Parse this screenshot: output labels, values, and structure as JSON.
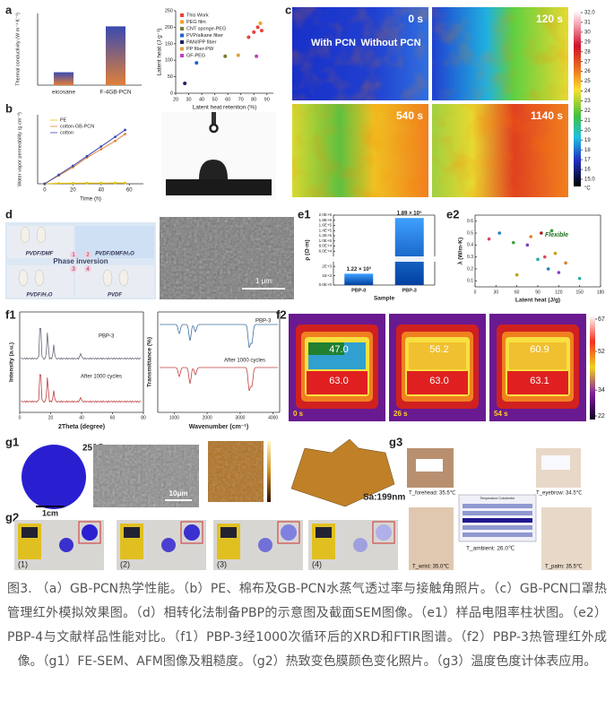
{
  "panels": {
    "a": "a",
    "b": "b",
    "c": "c",
    "d": "d",
    "e1": "e1",
    "e2": "e2",
    "f1": "f1",
    "f2": "f2",
    "g1": "g1",
    "g2": "g2",
    "g3": "g3"
  },
  "a": {
    "ylabel": "Thermal conductivity (W m⁻¹ K⁻¹)",
    "categories": [
      "eicosane",
      "F-4GB-PCN"
    ],
    "values": [
      0.18,
      0.82
    ],
    "ylim": [
      0,
      1
    ]
  },
  "scatter": {
    "xlabel": "Latent heat retention (%)",
    "ylabel": "Latent heat (J g⁻¹)",
    "xlim": [
      20,
      95
    ],
    "ylim": [
      0,
      250
    ],
    "xticks": [
      20,
      30,
      40,
      50,
      60,
      70,
      80,
      90
    ],
    "yticks": [
      0,
      50,
      100,
      150,
      200,
      250
    ],
    "series": [
      {
        "name": "This Work",
        "color": "#e8433a",
        "x": [
          76,
          80,
          83,
          86
        ],
        "y": [
          170,
          185,
          200,
          190
        ]
      },
      {
        "name": "PEG film",
        "color": "#f0a020",
        "x": [
          85
        ],
        "y": [
          212
        ]
      },
      {
        "name": "CNT sponge-PEG",
        "color": "#7a7a30",
        "x": [
          58
        ],
        "y": [
          112
        ]
      },
      {
        "name": "PVP/alkane fiber",
        "color": "#2060d0",
        "x": [
          36
        ],
        "y": [
          92
        ]
      },
      {
        "name": "PAN/IPP fiber",
        "color": "#202060",
        "x": [
          27
        ],
        "y": [
          30
        ]
      },
      {
        "name": "PP fiber-PW",
        "color": "#e0a040",
        "x": [
          68
        ],
        "y": [
          115
        ]
      },
      {
        "name": "GF-PEG",
        "color": "#c040c0",
        "x": [
          82
        ],
        "y": [
          112
        ]
      }
    ]
  },
  "b": {
    "xlabel": "Time (h)",
    "ylabel": "Water vapor permeability (g cm⁻²)",
    "xlim": [
      -5,
      70
    ],
    "ylim": [
      0,
      0.5
    ],
    "xticks": [
      0,
      20,
      40,
      60
    ],
    "x": [
      0,
      10,
      20,
      30,
      40,
      50,
      57
    ],
    "series": [
      {
        "name": "PE",
        "color": "#e6c200",
        "values": [
          0,
          0.003,
          0.004,
          0.005,
          0.005,
          0.006,
          0.006
        ]
      },
      {
        "name": "cotton-GB-PCN",
        "color": "#e0803a",
        "values": [
          0,
          0.06,
          0.12,
          0.19,
          0.25,
          0.31,
          0.36
        ]
      },
      {
        "name": "cotton",
        "color": "#3a4ab0",
        "values": [
          0,
          0.065,
          0.13,
          0.2,
          0.27,
          0.34,
          0.39
        ]
      }
    ]
  },
  "c": {
    "times": [
      "0 s",
      "120 s",
      "540 s",
      "1140 s"
    ],
    "with": "With PCN",
    "without": "Without PCN",
    "cbar": [
      {
        "value": 32,
        "label": "32.0"
      },
      31,
      30,
      29,
      28,
      27,
      26,
      25,
      24,
      23,
      22,
      21,
      20,
      19,
      18,
      17,
      16,
      {
        "value": 15,
        "label": "15.0"
      }
    ],
    "unit": "°C"
  },
  "d": {
    "s1": "PVDF/DMF",
    "s2": "PVDF/DMF/H₂O",
    "mid": "Phase inversion",
    "s3": "PVDF/H₂O",
    "s4": "PVDF",
    "scale": "1 μm",
    "steps": [
      "1",
      "2",
      "3",
      "4"
    ]
  },
  "e1": {
    "ylabel": "ρ (Ω·m)",
    "xlabel": "Sample",
    "categories": [
      "PBP-0",
      "PBP-3"
    ],
    "values": [
      1220,
      189000
    ],
    "value_labels": [
      "1.22 × 10³",
      "1.89 × 10⁵"
    ],
    "ylim_lower": [
      0,
      2500
    ],
    "ylim_upper": [
      40000,
      200000
    ],
    "yticks": [
      {
        "value": 0,
        "label": "0.0E+0"
      },
      {
        "value": 1000,
        "label": "1E+3"
      },
      {
        "value": 2000,
        "label": "2E+3"
      },
      {
        "value": 60000,
        "label": "6.0E+4"
      },
      {
        "value": 80000,
        "label": "8.0E+4"
      },
      {
        "value": 100000,
        "label": "1.0E+5"
      },
      {
        "value": 120000,
        "label": "1.2E+5"
      },
      {
        "value": 140000,
        "label": "1.4E+5"
      },
      {
        "value": 160000,
        "label": "1.6E+5"
      },
      {
        "value": 180000,
        "label": "1.8E+5"
      },
      {
        "value": 200000,
        "label": "2.0E+5"
      }
    ]
  },
  "e2": {
    "xlabel": "Latent heat (J/g)",
    "ylabel": "λ (W/m·K)",
    "note": "Flexible",
    "xlim": [
      0,
      180
    ],
    "ylim": [
      0.05,
      0.65
    ],
    "xticks": [
      0,
      30,
      60,
      90,
      120,
      150,
      180
    ],
    "yticks": [
      0.1,
      0.2,
      0.3,
      0.4,
      0.5,
      0.6
    ],
    "x": [
      20,
      35,
      55,
      60,
      75,
      80,
      90,
      95,
      100,
      105,
      110,
      115,
      120,
      130,
      150
    ],
    "y": [
      0.45,
      0.5,
      0.42,
      0.15,
      0.4,
      0.47,
      0.28,
      0.5,
      0.3,
      0.2,
      0.52,
      0.33,
      0.17,
      0.25,
      0.12
    ]
  },
  "f1": {
    "xrd_top": "PBP-3",
    "xrd_bottom": "After 1000 cycles",
    "xrd_xlabel": "2Theta (degree)",
    "xrd_ylabel": "Intensity (a.u.)",
    "xrd_xticks": [
      0,
      20,
      40,
      60,
      80
    ],
    "ftir_top": "PBP-3",
    "ftir_bottom": "After 1000 cycles",
    "ftir_xlabel": "Wavenumber (cm⁻¹)",
    "ftir_ylabel": "Transmittance (%)",
    "ftir_xticks": [
      1000,
      2000,
      3000,
      4000
    ]
  },
  "f2": {
    "times": [
      "0 s",
      "26 s",
      "54 s"
    ],
    "top": [
      "47.0",
      "56.2",
      "60.9"
    ],
    "bottom": [
      "63.0",
      "63.0",
      "63.1"
    ],
    "cbar": [
      67,
      52,
      34,
      22
    ]
  },
  "g1": {
    "temp": "25℃",
    "scale1": "1cm",
    "scale2": "10μm",
    "sa": "Sa:199nm"
  },
  "g2": {
    "steps": [
      "(1)",
      "(2)",
      "(3)",
      "(4)"
    ]
  },
  "g3": {
    "forehead": "T_forehead: 35.5℃",
    "eyebrow": "T_eyebrow: 34.5℃",
    "ambient": "T_ambient: 26.0℃",
    "wrist": "T_wrist: 35.0℃",
    "palm": "T_palm: 35.5℃",
    "table": "Temperature Colorimeter"
  },
  "caption": "图3. （a）GB-PCN热学性能。（b）PE、棉布及GB-PCN水蒸气透过率与接触角照片。（c）GB-PCN口罩热管理红外模拟效果图。（d）相转化法制备PBP的示意图及截面SEM图像。（e1）样品电阻率柱状图。（e2）PBP-4与文献样品性能对比。（f1）PBP-3经1000次循环后的XRD和FTIR图谱。（f2）PBP-3热管理红外成像。（g1）FE-SEM、AFM图像及粗糙度。（g2）热致变色膜颜色变化照片。（g3）温度色度计体表应用。"
}
